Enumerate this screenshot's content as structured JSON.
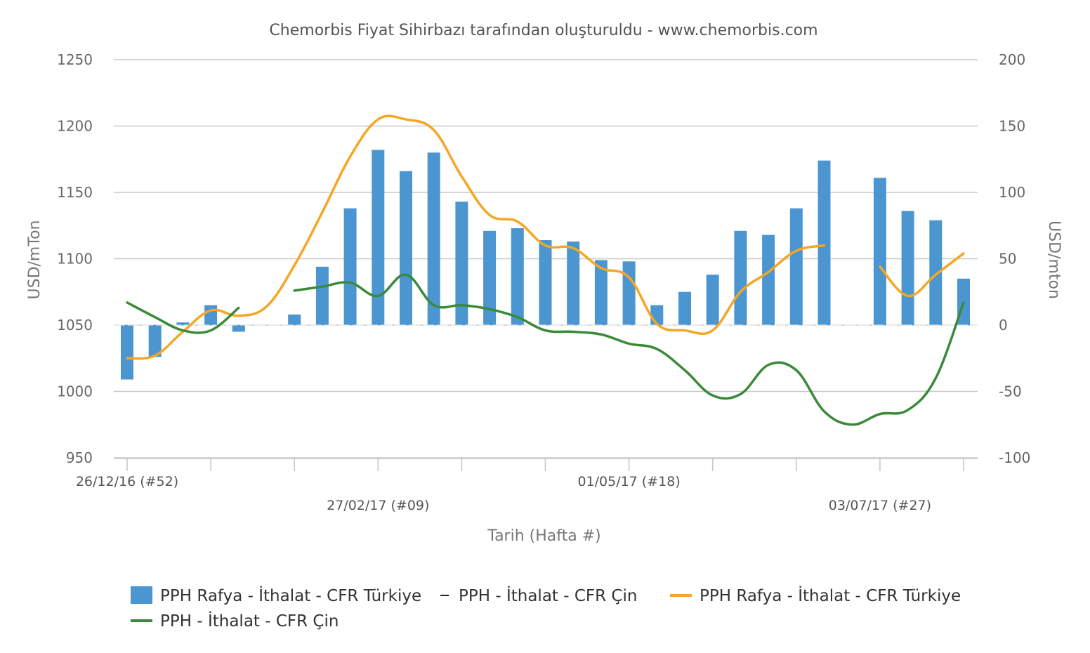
{
  "chart_data": {
    "type": "bar",
    "title": "Chemorbis Fiyat Sihirbazı tarafından oluşturuldu - www.chemorbis.com",
    "xlabel": "Tarih (Hafta #)",
    "ylabel_left": "USD/mTon",
    "ylabel_right": "USD/mton",
    "ylim_left": [
      950,
      1250
    ],
    "ylim_right": [
      -100,
      200
    ],
    "yticks_left": [
      "1250",
      "1200",
      "1150",
      "1100",
      "1050",
      "1000",
      "950"
    ],
    "yticks_right": [
      "200",
      "150",
      "100",
      "50",
      "0",
      "-50",
      "-100"
    ],
    "x_tick_labels": [
      {
        "label": "26/12/16 (#52)",
        "index": 0
      },
      {
        "label": "27/02/17 (#09)",
        "index": 9
      },
      {
        "label": "01/05/17 (#18)",
        "index": 18
      },
      {
        "label": "03/07/17 (#27)",
        "index": 27
      }
    ],
    "grid": true,
    "legend_position": "bottom",
    "x_count": 31,
    "series": [
      {
        "name": "PPH Rafya - İthalat - CFR Türkiye",
        "kind": "bar",
        "axis": "right",
        "color": "#4b96d1",
        "values": [
          -41,
          -24,
          2,
          15,
          -5,
          null,
          8,
          44,
          88,
          132,
          116,
          130,
          93,
          71,
          73,
          64,
          63,
          49,
          48,
          15,
          25,
          38,
          71,
          68,
          88,
          124,
          null,
          111,
          86,
          79,
          35
        ]
      },
      {
        "name": "PPH - İthalat - CFR Çin",
        "kind": "bar",
        "axis": "right",
        "color": "#222222",
        "values": []
      },
      {
        "name": "PPH Rafya - İthalat - CFR Türkiye",
        "kind": "line",
        "axis": "left",
        "color": "#f5a623",
        "values": [
          1025,
          1027,
          1045,
          1061,
          1057,
          1064,
          1095,
          1135,
          1177,
          1205,
          1205,
          1197,
          1162,
          1133,
          1128,
          1110,
          1108,
          1093,
          1086,
          1051,
          1046,
          1046,
          1075,
          1090,
          1106,
          1110,
          null,
          1094,
          1072,
          1088,
          1104
        ]
      },
      {
        "name": "PPH - İthalat - CFR Çin",
        "kind": "line",
        "axis": "left",
        "color": "#3a8a3a",
        "values": [
          1067,
          1056,
          1046,
          1046,
          1063,
          null,
          1076,
          1079,
          1082,
          1072,
          1088,
          1065,
          1065,
          1062,
          1056,
          1046,
          1045,
          1043,
          1036,
          1032,
          1016,
          997,
          998,
          1020,
          1016,
          985,
          975,
          983,
          986,
          1010,
          1067
        ]
      }
    ]
  }
}
